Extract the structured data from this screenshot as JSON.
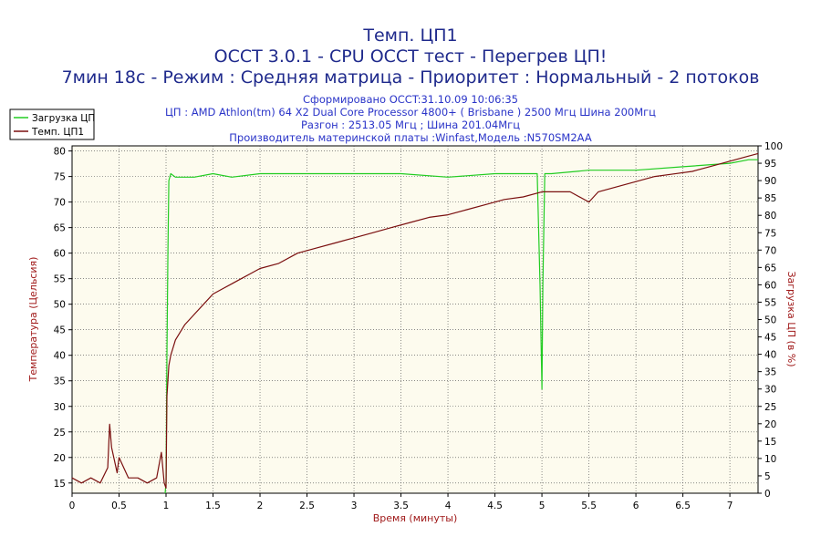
{
  "header": {
    "title_line1": "Темп. ЦП1",
    "title_line2": "OCCT 3.0.1 - CPU OCCT тест - Перегрев ЦП!",
    "title_line3": "7мин 18с - Режим : Средняя матрица - Приоритет : Нормальный - 2 потоков",
    "info_line1": "Сформировано OCCT:31.10.09 10:06:35",
    "info_line2": "ЦП : AMD Athlon(tm) 64 X2 Dual Core Processor 4800+ ( Brisbane ) 2500 Мгц Шина 200Мгц",
    "info_line3": "Разгон : 2513.05 Мгц ; Шина 201.04Мгц",
    "info_line4": "Производитель материнской платы :Winfast,Модель :N570SM2AA"
  },
  "chart_data": {
    "type": "line",
    "xlabel": "Время (минуты)",
    "ylabel_left": "Температура (Цельсия)",
    "ylabel_right": "Загрузка ЦП (в %)",
    "xlim": [
      0,
      7.3
    ],
    "ylim_left": [
      13,
      81
    ],
    "ylim_right": [
      0,
      100
    ],
    "x_ticks": [
      "0",
      "0.5",
      "1",
      "1.5",
      "2",
      "2.5",
      "3",
      "3.5",
      "4",
      "4.5",
      "5",
      "5.5",
      "6",
      "6.5",
      "7"
    ],
    "y_left_ticks": [
      "15",
      "20",
      "25",
      "30",
      "35",
      "40",
      "45",
      "50",
      "55",
      "60",
      "65",
      "70",
      "75",
      "80"
    ],
    "y_right_ticks": [
      "0",
      "5",
      "10",
      "15",
      "20",
      "25",
      "30",
      "35",
      "40",
      "45",
      "50",
      "55",
      "60",
      "65",
      "70",
      "75",
      "80",
      "85",
      "90",
      "95",
      "100"
    ],
    "grid": true,
    "legend_position": "top-left",
    "colors": {
      "load": "#22cc22",
      "temp": "#7a0f0f",
      "plot_bg": "#fdfbee",
      "grid": "#444444"
    },
    "series": [
      {
        "name": "Загрузка ЦП",
        "axis": "right",
        "x": [
          0.99,
          1.0,
          1.01,
          1.02,
          1.03,
          1.05,
          1.1,
          1.2,
          1.3,
          1.5,
          1.7,
          2.0,
          2.5,
          3.0,
          3.5,
          4.0,
          4.5,
          4.95,
          4.98,
          5.0,
          5.01,
          5.03,
          5.1,
          5.5,
          6.0,
          6.5,
          7.0,
          7.2,
          7.3
        ],
        "values": [
          0,
          3,
          40,
          70,
          90,
          92,
          91,
          91,
          91,
          92,
          91,
          92,
          92,
          92,
          92,
          91,
          92,
          92,
          60,
          30,
          60,
          92,
          92,
          93,
          93,
          94,
          95,
          96,
          96
        ]
      },
      {
        "name": "Темп. ЦП1",
        "axis": "left",
        "x": [
          0.0,
          0.1,
          0.2,
          0.3,
          0.38,
          0.4,
          0.42,
          0.48,
          0.5,
          0.6,
          0.7,
          0.8,
          0.9,
          0.95,
          0.98,
          1.0,
          1.01,
          1.03,
          1.05,
          1.1,
          1.2,
          1.3,
          1.4,
          1.5,
          1.6,
          1.7,
          1.8,
          1.9,
          2.0,
          2.2,
          2.4,
          2.6,
          2.8,
          3.0,
          3.2,
          3.4,
          3.6,
          3.8,
          4.0,
          4.2,
          4.4,
          4.6,
          4.8,
          5.0,
          5.1,
          5.3,
          5.5,
          5.6,
          5.8,
          6.0,
          6.2,
          6.4,
          6.6,
          6.8,
          7.0,
          7.2,
          7.3
        ],
        "values": [
          16,
          15,
          16,
          15,
          18,
          26.5,
          22,
          17,
          20,
          16,
          16,
          15,
          16,
          21,
          15,
          14,
          32,
          38,
          40,
          43,
          46,
          48,
          50,
          52,
          53,
          54,
          55,
          56,
          57,
          58,
          60,
          61,
          62,
          63,
          64,
          65,
          66,
          67,
          67.5,
          68.5,
          69.5,
          70.5,
          71,
          72,
          72,
          72,
          70,
          72,
          73,
          74,
          75,
          75.5,
          76,
          77,
          78,
          79,
          79.5
        ]
      }
    ]
  }
}
